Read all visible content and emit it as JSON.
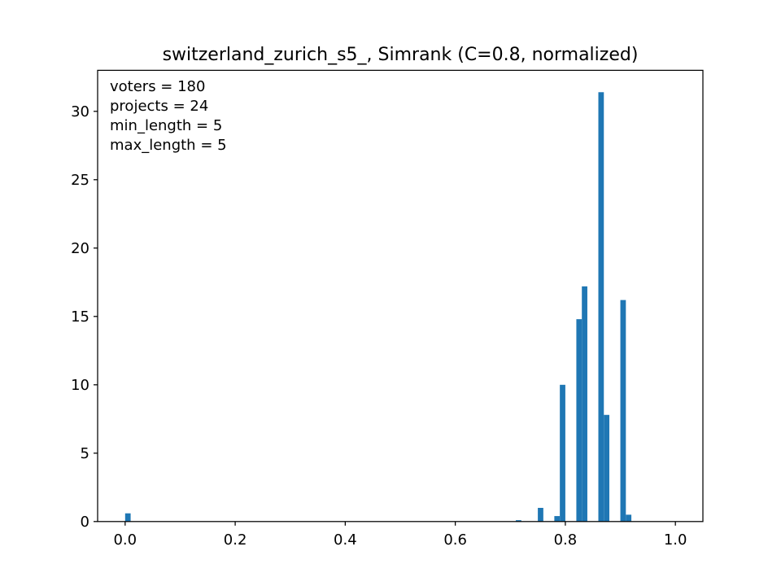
{
  "chart_data": {
    "type": "bar",
    "title": "switzerland_zurich_s5_, Simrank (C=0.8, normalized)",
    "xlabel": "",
    "ylabel": "",
    "xlim": [
      -0.05,
      1.05
    ],
    "ylim": [
      0,
      33
    ],
    "grid": false,
    "bar_color": "#1f77b4",
    "bin_width": 0.01,
    "x_ticks": [
      0.0,
      0.2,
      0.4,
      0.6,
      0.8,
      1.0
    ],
    "x_tick_labels": [
      "0.0",
      "0.2",
      "0.4",
      "0.6",
      "0.8",
      "1.0"
    ],
    "y_ticks": [
      0,
      5,
      10,
      15,
      20,
      25,
      30
    ],
    "y_tick_labels": [
      "0",
      "5",
      "10",
      "15",
      "20",
      "25",
      "30"
    ],
    "bins": [
      {
        "x": 0.0,
        "value": 0.6
      },
      {
        "x": 0.71,
        "value": 0.1
      },
      {
        "x": 0.75,
        "value": 1.0
      },
      {
        "x": 0.78,
        "value": 0.4
      },
      {
        "x": 0.79,
        "value": 10.0
      },
      {
        "x": 0.82,
        "value": 14.8
      },
      {
        "x": 0.83,
        "value": 17.2
      },
      {
        "x": 0.86,
        "value": 31.4
      },
      {
        "x": 0.87,
        "value": 7.8
      },
      {
        "x": 0.9,
        "value": 16.2
      },
      {
        "x": 0.91,
        "value": 0.5
      }
    ],
    "annotations": [
      "voters = 180",
      "projects = 24",
      "min_length = 5",
      "max_length = 5"
    ]
  }
}
